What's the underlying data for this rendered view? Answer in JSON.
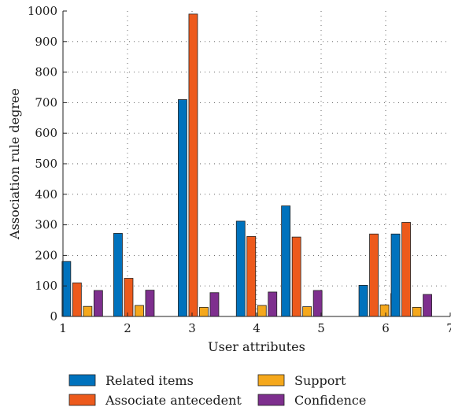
{
  "chart_data": {
    "type": "bar",
    "title": "",
    "xlabel": "User attributes",
    "ylabel": "Association rule degree",
    "ylim": [
      0,
      1000
    ],
    "xlim": [
      1,
      7
    ],
    "x_ticks": [
      "1",
      "2",
      "3",
      "4",
      "5",
      "6",
      "7"
    ],
    "y_ticks": [
      "0",
      "100",
      "200",
      "300",
      "400",
      "500",
      "600",
      "700",
      "800",
      "900",
      "1000"
    ],
    "grid": true,
    "legend_position": "bottom",
    "groups": [
      1.3,
      2.1,
      3.1,
      4.0,
      4.7,
      5.9,
      6.4
    ],
    "series": [
      {
        "name": "Related items",
        "color": "#0072BD",
        "values": [
          180,
          272,
          710,
          312,
          362,
          102,
          270
        ]
      },
      {
        "name": "Associate antecedent",
        "color": "#ED5A1C",
        "values": [
          110,
          125,
          990,
          262,
          260,
          270,
          308
        ]
      },
      {
        "name": "Support",
        "color": "#F5A81C",
        "values": [
          33,
          36,
          30,
          36,
          32,
          38,
          30
        ]
      },
      {
        "name": "Confidence",
        "color": "#7E2F8E",
        "values": [
          85,
          86,
          78,
          80,
          85,
          75,
          72
        ]
      }
    ]
  }
}
